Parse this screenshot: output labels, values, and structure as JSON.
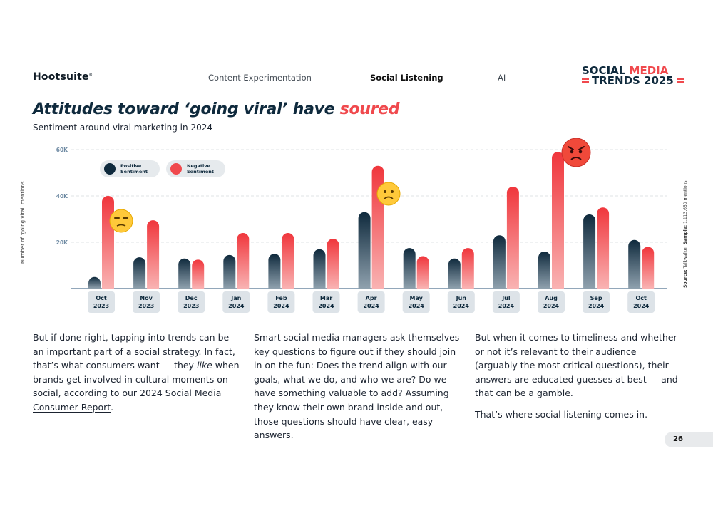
{
  "header": {
    "brand": "Hootsuite",
    "brand_mark": "®",
    "nav": [
      {
        "label": "Content Experimentation",
        "active": false
      },
      {
        "label": "Social Listening",
        "active": true
      },
      {
        "label": "AI",
        "active": false
      }
    ],
    "logo_line1a": "SOCIAL ",
    "logo_line1b": "MEDIA",
    "logo_line2": "TRENDS 2025"
  },
  "headline": {
    "main": "Attitudes toward ‘going viral’ have ",
    "accent": "soured"
  },
  "subtitle": "Sentiment around viral marketing in 2024",
  "y_axis_title": "Number of ‘going viral’ mentions",
  "source": {
    "source_label": "Source:",
    "source_value": "Talkwalker",
    "sample_label": "Sample:",
    "sample_value": "1,113,650 mentions"
  },
  "chart_data": {
    "type": "bar",
    "title": "Sentiment around viral marketing in 2024",
    "ylabel": "Number of ‘going viral’ mentions",
    "ylim": [
      0,
      60000
    ],
    "yticks": [
      {
        "value": 20000,
        "label": "20K"
      },
      {
        "value": 40000,
        "label": "40K"
      },
      {
        "value": 60000,
        "label": "60K"
      }
    ],
    "categories": [
      {
        "month": "Oct",
        "year": "2023"
      },
      {
        "month": "Nov",
        "year": "2023"
      },
      {
        "month": "Dec",
        "year": "2023"
      },
      {
        "month": "Jan",
        "year": "2024"
      },
      {
        "month": "Feb",
        "year": "2024"
      },
      {
        "month": "Mar",
        "year": "2024"
      },
      {
        "month": "Apr",
        "year": "2024"
      },
      {
        "month": "May",
        "year": "2024"
      },
      {
        "month": "Jun",
        "year": "2024"
      },
      {
        "month": "Jul",
        "year": "2024"
      },
      {
        "month": "Aug",
        "year": "2024"
      },
      {
        "month": "Sep",
        "year": "2024"
      },
      {
        "month": "Oct",
        "year": "2024"
      }
    ],
    "series": [
      {
        "name": "Positive Sentiment",
        "legend_line1": "Positive",
        "legend_line2": "Sentiment",
        "color": "#0f2a3d",
        "values": [
          5000,
          13500,
          13000,
          14500,
          15000,
          17000,
          33000,
          17500,
          13000,
          23000,
          16000,
          32000,
          21000
        ]
      },
      {
        "name": "Negative Sentiment",
        "legend_line1": "Negative",
        "legend_line2": "Sentiment",
        "color": "#f0494d",
        "values": [
          40000,
          29500,
          12500,
          24000,
          24000,
          21500,
          53000,
          14000,
          17500,
          44000,
          59000,
          35000,
          18000
        ]
      }
    ],
    "legend_position": "top-left",
    "annotations": [
      {
        "category_index": 0,
        "emoji": "😒",
        "name": "unamused-face-emoji"
      },
      {
        "category_index": 6,
        "emoji": "🙁",
        "name": "frowning-face-emoji"
      },
      {
        "category_index": 10,
        "emoji": "😡",
        "name": "angry-face-emoji"
      }
    ],
    "grid": true
  },
  "body": {
    "col1_a": "But if done right, tapping into trends can be an important part of a social strategy. In fact, that’s what consumers want — they ",
    "col1_em": "like",
    "col1_b": " when brands get involved in cultural moments on social, according to our 2024 ",
    "col1_link": "Social Media Consumer Report",
    "col1_c": ".",
    "col2": "Smart social media managers ask themselves key questions to figure out if they should join in on the fun: Does the trend align with our goals, what we do, and who we are? Do we have something valuable to add? Assuming they know their own brand inside and out, those questions should have clear, easy answers.",
    "col3_p1": "But when it comes to timeliness and whether or not it’s relevant to their audience (arguably the most critical questions), their answers are educated guesses at best — and that can be a gamble.",
    "col3_p2": "That’s where social listening comes in."
  },
  "page_number": "26"
}
